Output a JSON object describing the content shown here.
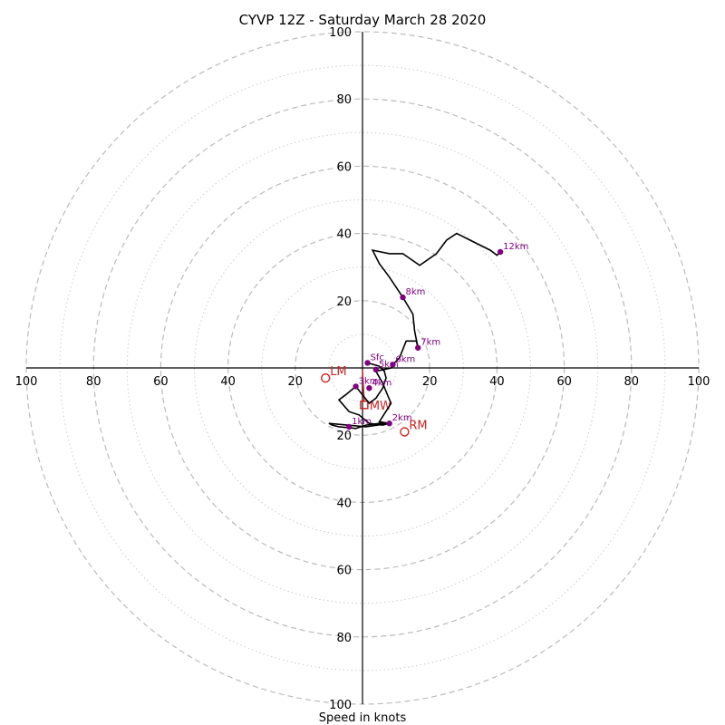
{
  "chart_data": {
    "type": "hodograph",
    "title": "CYVP 12Z - Saturday March 28 2020",
    "xlabel": "Speed in knots",
    "ylabel": "",
    "rmax": 100,
    "ring_major": [
      20,
      40,
      60,
      80,
      100
    ],
    "ring_minor": [
      10,
      30,
      50,
      70,
      90
    ],
    "tick_labels_x": [
      {
        "value": -100,
        "label": "100"
      },
      {
        "value": -80,
        "label": "80"
      },
      {
        "value": -60,
        "label": "60"
      },
      {
        "value": -40,
        "label": "40"
      },
      {
        "value": -20,
        "label": "20"
      },
      {
        "value": 20,
        "label": "20"
      },
      {
        "value": 40,
        "label": "40"
      },
      {
        "value": 60,
        "label": "60"
      },
      {
        "value": 80,
        "label": "80"
      },
      {
        "value": 100,
        "label": "100"
      }
    ],
    "tick_labels_y": [
      {
        "value": 100,
        "label": "100"
      },
      {
        "value": 80,
        "label": "80"
      },
      {
        "value": 60,
        "label": "60"
      },
      {
        "value": 40,
        "label": "40"
      },
      {
        "value": 20,
        "label": "20"
      },
      {
        "value": -20,
        "label": "20"
      },
      {
        "value": -40,
        "label": "40"
      },
      {
        "value": -60,
        "label": "60"
      },
      {
        "value": -80,
        "label": "80"
      },
      {
        "value": -100,
        "label": "100"
      }
    ],
    "trace": [
      [
        1.5,
        1.5
      ],
      [
        5,
        0.5
      ],
      [
        6.5,
        -1
      ],
      [
        7,
        -3
      ],
      [
        6,
        -6
      ],
      [
        4,
        -9
      ],
      [
        2,
        -10.5
      ],
      [
        -2,
        -5.5
      ],
      [
        -5,
        -8
      ],
      [
        -7,
        -9.5
      ],
      [
        -4,
        -13
      ],
      [
        -1,
        -14
      ],
      [
        2,
        -16.5
      ],
      [
        6,
        -17
      ],
      [
        8,
        -16.5
      ],
      [
        5,
        -16.5
      ],
      [
        1,
        -17
      ],
      [
        -2,
        -18
      ],
      [
        -7,
        -17.5
      ],
      [
        -9,
        -17
      ],
      [
        -10,
        -16.5
      ],
      [
        1,
        -17.5
      ],
      [
        8,
        -16.5
      ],
      [
        5,
        -16
      ],
      [
        8.5,
        -10.5
      ],
      [
        7,
        -7
      ],
      [
        6,
        -4.5
      ],
      [
        4,
        -1
      ],
      [
        8.5,
        0
      ],
      [
        9,
        1
      ],
      [
        11,
        3
      ],
      [
        13,
        8
      ],
      [
        16,
        8
      ],
      [
        16.5,
        6
      ],
      [
        15.5,
        11
      ],
      [
        15,
        16
      ],
      [
        12,
        21
      ],
      [
        8,
        27
      ],
      [
        5,
        31
      ],
      [
        3,
        35
      ],
      [
        8,
        34
      ],
      [
        12,
        34
      ],
      [
        17,
        30.5
      ],
      [
        22,
        34
      ],
      [
        25,
        38
      ],
      [
        28,
        40
      ],
      [
        32,
        38
      ],
      [
        38,
        35
      ],
      [
        40,
        33.5
      ],
      [
        41,
        34.5
      ]
    ],
    "height_markers": [
      {
        "label": "Sfc",
        "u": 1.5,
        "v": 1.5
      },
      {
        "label": "1km",
        "u": -4,
        "v": -17.5
      },
      {
        "label": "2km",
        "u": 8,
        "v": -16.5
      },
      {
        "label": "3km",
        "u": -2,
        "v": -5.5
      },
      {
        "label": "4km",
        "u": 2,
        "v": -6
      },
      {
        "label": "5km",
        "u": 4,
        "v": -0.5
      },
      {
        "label": "6km",
        "u": 9,
        "v": 1
      },
      {
        "label": "7km",
        "u": 16.5,
        "v": 6
      },
      {
        "label": "8km",
        "u": 12,
        "v": 21
      },
      {
        "label": "12km",
        "u": 41,
        "v": 34.5
      }
    ],
    "storm_motion": [
      {
        "label": "LM",
        "u": -11,
        "v": -3
      },
      {
        "label": "RM",
        "u": 12.5,
        "v": -19
      },
      {
        "label": "MW",
        "u": 0.5,
        "v": -11
      }
    ],
    "shear_vector": [
      [
        0,
        -0.5
      ],
      [
        0.5,
        -10
      ]
    ],
    "colors": {
      "trace": "#000000",
      "height_marker": "#800080",
      "storm_motion": "#cc2222",
      "ring": "#bbbbbb"
    },
    "grid": true
  }
}
